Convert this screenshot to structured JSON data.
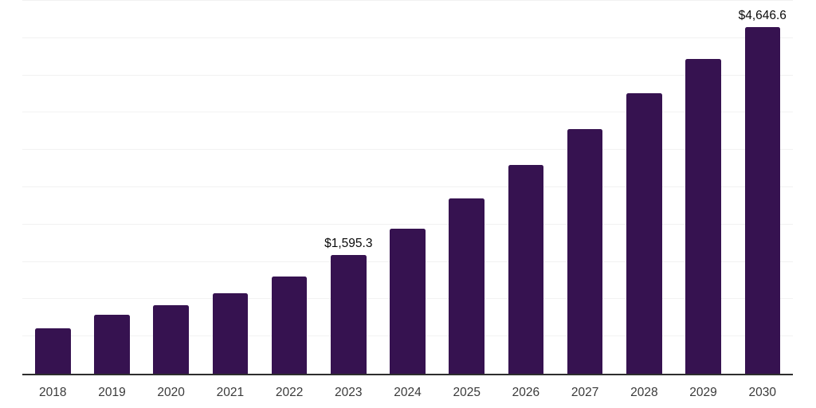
{
  "chart_data": {
    "type": "bar",
    "title": "",
    "xlabel": "",
    "ylabel": "",
    "categories": [
      "2018",
      "2019",
      "2020",
      "2021",
      "2022",
      "2023",
      "2024",
      "2025",
      "2026",
      "2027",
      "2028",
      "2029",
      "2030"
    ],
    "values": [
      612,
      794,
      916,
      1076,
      1300,
      1595.3,
      1941,
      2347,
      2796,
      3283,
      3758,
      4220,
      4646.6
    ],
    "data_labels": [
      {
        "category": "2023",
        "text": "$1,595.3"
      },
      {
        "category": "2030",
        "text": "$4,646.6"
      }
    ],
    "ylim": [
      0,
      5000
    ],
    "gridline_step": 500,
    "grid": true,
    "legend": false,
    "colors": {
      "bar": "#361250",
      "axis_line": "#2e2e2e",
      "gridline": "#f2f2f2",
      "tick_label": "#3a3a3a",
      "data_label": "#0a0a0a",
      "background": "#ffffff"
    }
  }
}
